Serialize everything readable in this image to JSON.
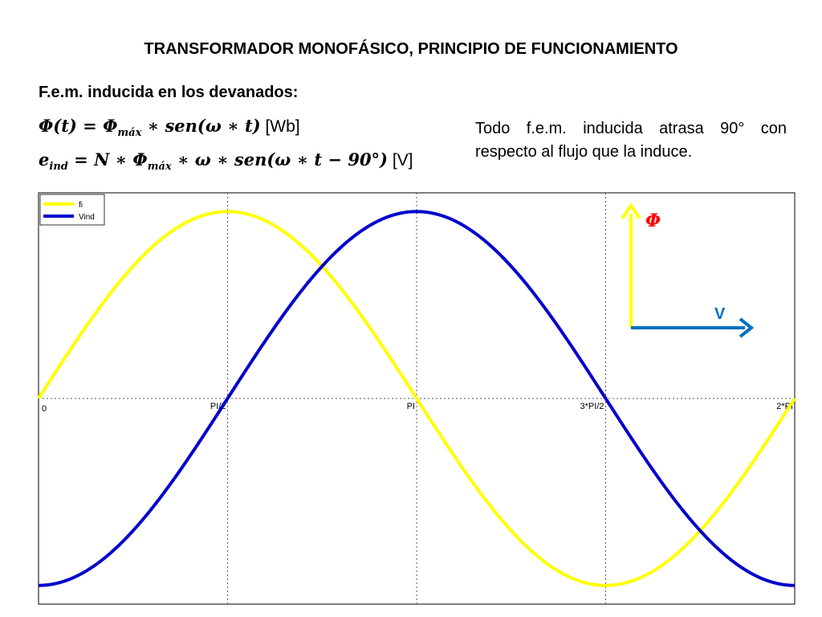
{
  "title": "TRANSFORMADOR MONOFÁSICO, PRINCIPIO DE FUNCIONAMIENTO",
  "subtitle": "F.e.m. inducida en los devanados:",
  "formula1": {
    "lhs": "Φ(t)",
    "eq": " = ",
    "phi": "Φ",
    "phi_sub": "máx",
    "rest": " ∗ sen(ω ∗ t)",
    "unit": " [Wb]"
  },
  "formula2": {
    "e": "e",
    "e_sub": "ind",
    "eq": " = N ∗ ",
    "phi": "Φ",
    "phi_sub": "máx",
    "rest": " ∗ ω ∗ sen(ω ∗ t − 90°)",
    "unit": " [V]"
  },
  "note": "Todo f.e.m. inducida atrasa 90° con respecto al flujo que la induce.",
  "phasor": {
    "phi_label": "Φ",
    "v_label": "V",
    "phi_color": "#ffff00",
    "v_color": "#0070c0"
  },
  "chart_data": {
    "type": "line",
    "x_ticks": [
      "0",
      "PI/2",
      "PI",
      "3*PI/2",
      "2*PI"
    ],
    "x_tick_values": [
      0,
      1.5708,
      3.1416,
      4.7124,
      6.2832
    ],
    "xlim": [
      0,
      6.2832
    ],
    "ylim": [
      -1.1,
      1.1
    ],
    "grid": true,
    "legend_position": "top-left",
    "series": [
      {
        "name": "fi",
        "color": "#ffff00",
        "function": "sin(t)"
      },
      {
        "name": "Vind",
        "color": "#0000cc",
        "function": "sin(t - 90°)"
      }
    ]
  }
}
